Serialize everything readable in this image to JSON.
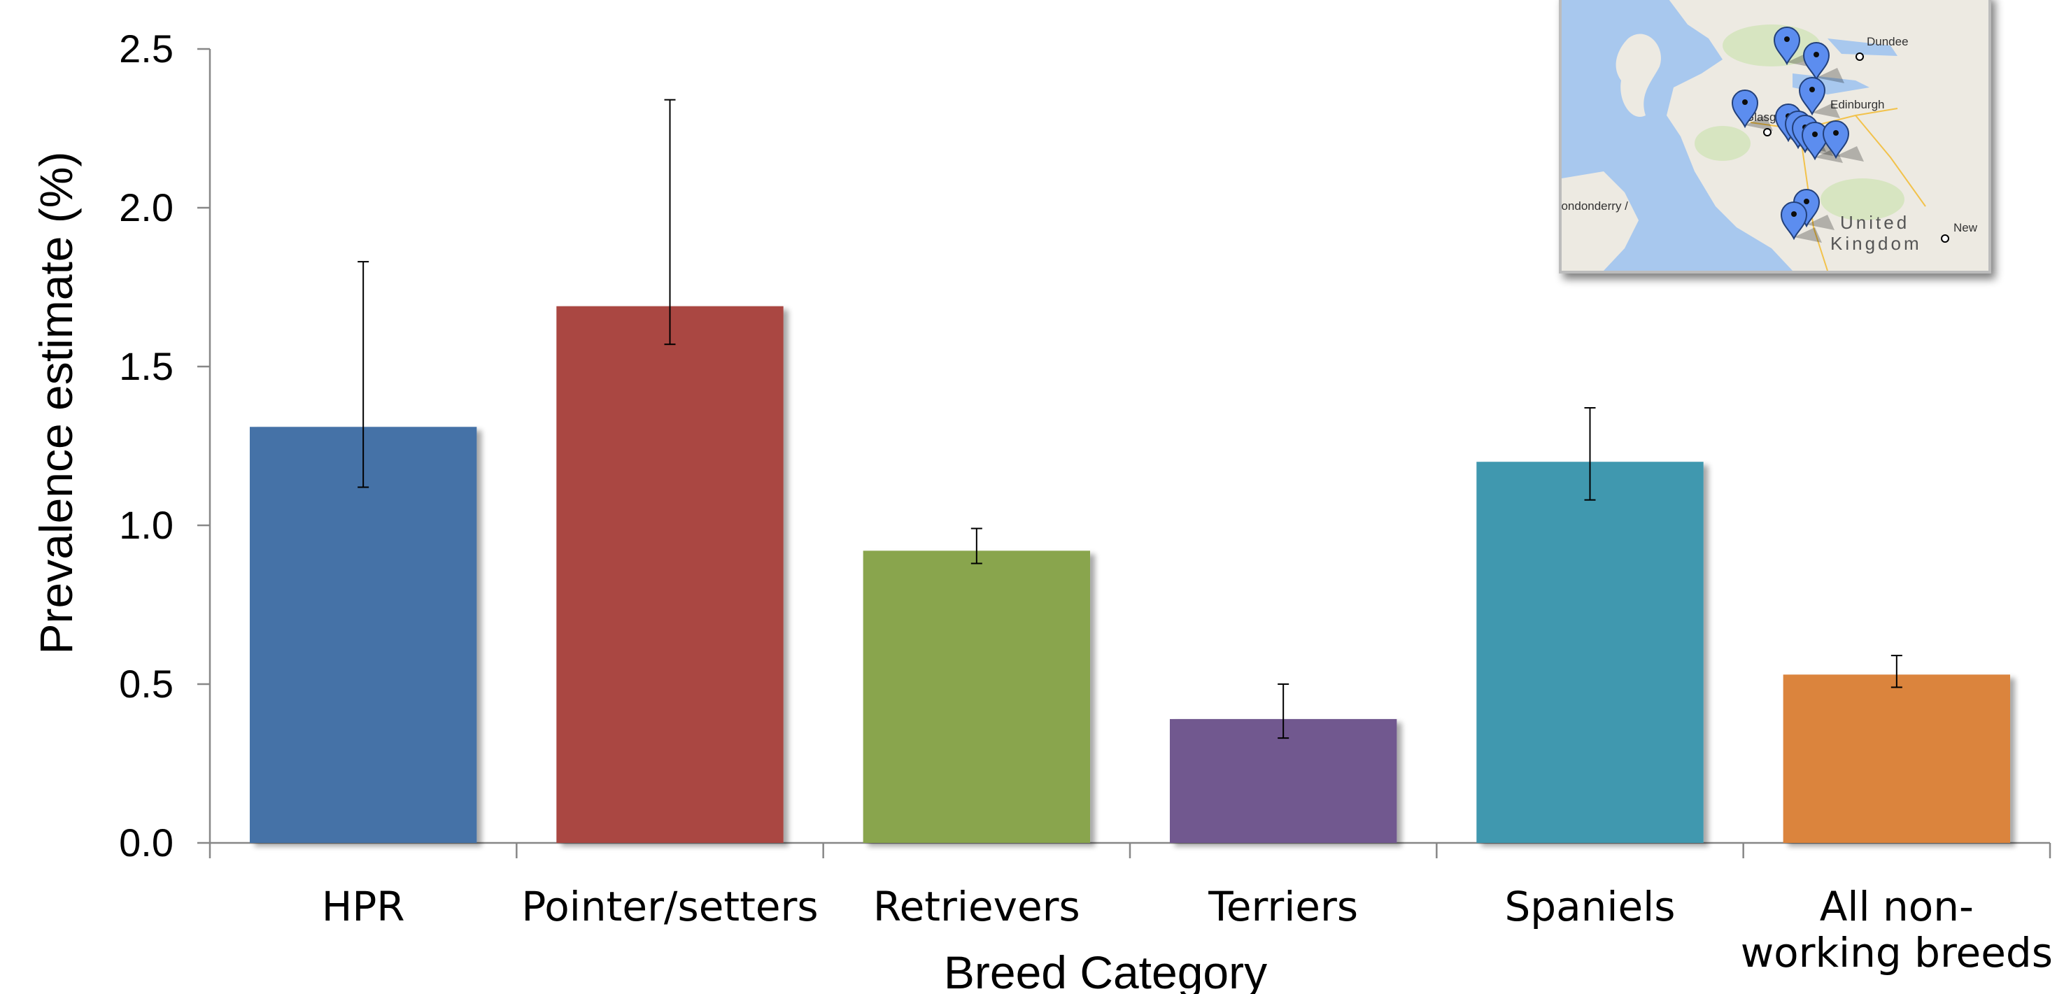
{
  "chart_data": {
    "type": "bar",
    "title": "",
    "xlabel": "Breed Category",
    "ylabel": "Prevalence estimate (%)",
    "ylim": [
      0,
      2.5
    ],
    "yticks": [
      "0.0",
      "0.5",
      "1.0",
      "1.5",
      "2.0",
      "2.5"
    ],
    "grid": false,
    "legend": "none",
    "categories": [
      [
        "HPR"
      ],
      [
        "Pointer/setters"
      ],
      [
        "Retrievers"
      ],
      [
        "Terriers"
      ],
      [
        "Spaniels"
      ],
      [
        "All non-",
        "working breeds"
      ]
    ],
    "values": [
      1.31,
      1.69,
      0.92,
      0.39,
      1.2,
      0.53
    ],
    "error_low": [
      1.12,
      1.57,
      0.88,
      0.33,
      1.08,
      0.49
    ],
    "error_high": [
      1.83,
      2.34,
      0.99,
      0.5,
      1.37,
      0.59
    ],
    "colors": [
      "#4572A7",
      "#AA4643",
      "#89A54E",
      "#71588F",
      "#4198AF",
      "#DB843D"
    ]
  },
  "inset_map": {
    "place_labels": [
      "Dundee",
      "Edinburgh",
      "Glasgow",
      "Londonderry /",
      "United",
      "Kingdom",
      "New"
    ],
    "marker_icon": "map-pin-icon",
    "marker_color": "#5B8DEF",
    "water_color": "#A8C8EE",
    "land_color": "#EDEAE2"
  }
}
